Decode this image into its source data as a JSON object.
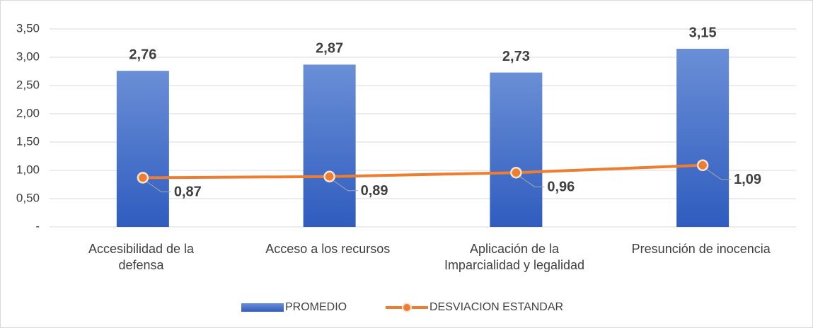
{
  "chart_data": {
    "type": "bar",
    "categories": [
      "Accesibilidad de la\ndefensa",
      "Acceso a los recursos",
      "Aplicación de la\nImparcialidad y legalidad",
      "Presunción de inocencia"
    ],
    "series": [
      {
        "name": "PROMEDIO",
        "type": "bar",
        "color": "#4472c4",
        "values": [
          2.76,
          2.87,
          2.73,
          3.15
        ],
        "value_labels": [
          "2,76",
          "2,87",
          "2,73",
          "3,15"
        ]
      },
      {
        "name": "DESVIACION ESTANDAR",
        "type": "line",
        "color": "#ed7d31",
        "values": [
          0.87,
          0.89,
          0.96,
          1.09
        ],
        "value_labels": [
          "0,87",
          "0,89",
          "0,96",
          "1,09"
        ]
      }
    ],
    "ylim": [
      0,
      3.5
    ],
    "yticks": [
      {
        "value": 0,
        "label": "-"
      },
      {
        "value": 0.5,
        "label": "0,50"
      },
      {
        "value": 1,
        "label": "1,00"
      },
      {
        "value": 1.5,
        "label": "1,50"
      },
      {
        "value": 2,
        "label": "2,00"
      },
      {
        "value": 2.5,
        "label": "2,50"
      },
      {
        "value": 3,
        "label": "3,00"
      },
      {
        "value": 3.5,
        "label": "3,50"
      }
    ],
    "grid": true,
    "legend": "bottom"
  }
}
